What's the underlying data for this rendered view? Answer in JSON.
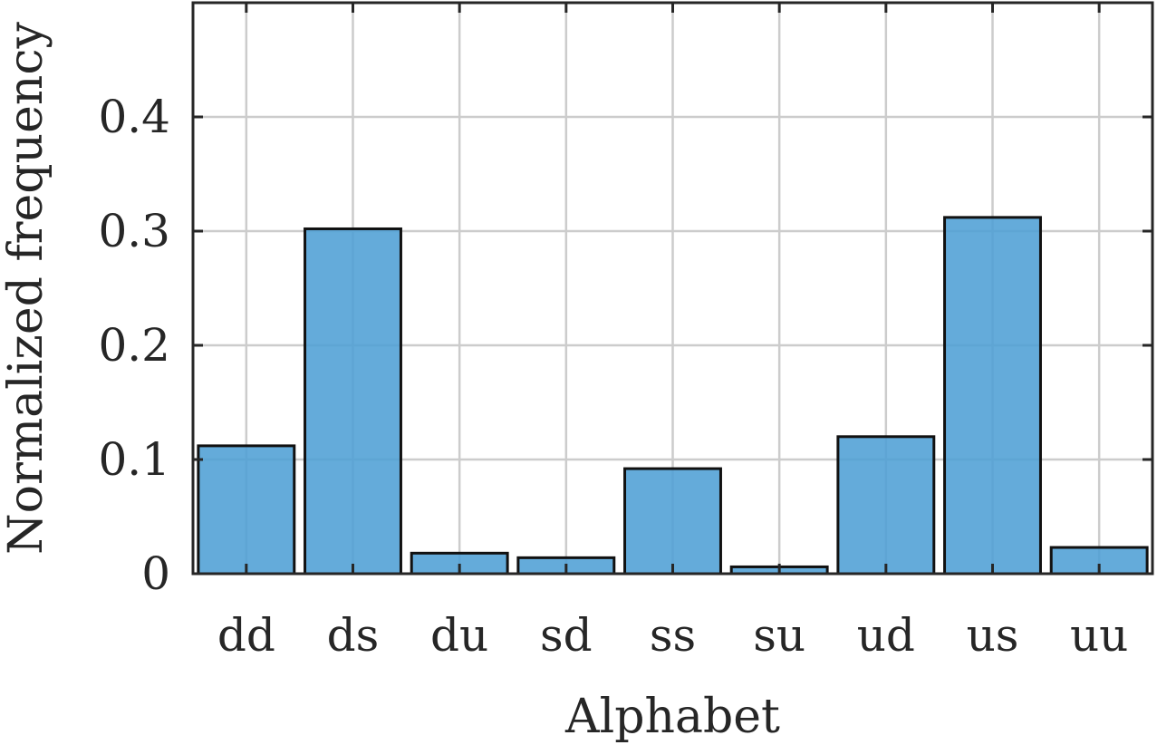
{
  "chart_data": {
    "type": "bar",
    "categories": [
      "dd",
      "ds",
      "du",
      "sd",
      "ss",
      "su",
      "ud",
      "us",
      "uu"
    ],
    "values": [
      0.112,
      0.302,
      0.018,
      0.014,
      0.092,
      0.006,
      0.12,
      0.312,
      0.023
    ],
    "xlabel": "Alphabet",
    "ylabel": "Normalized frequency",
    "ylim": [
      0,
      0.5
    ],
    "yticks": [
      0,
      0.1,
      0.2,
      0.3,
      0.4
    ],
    "ytick_labels": [
      "0",
      "0.1",
      "0.2",
      "0.3",
      "0.4"
    ],
    "grid": true,
    "colors": {
      "bar_fill": "#4f9fd5",
      "bar_edge": "#111111",
      "grid": "#cccccc",
      "axes": "#262626"
    }
  }
}
